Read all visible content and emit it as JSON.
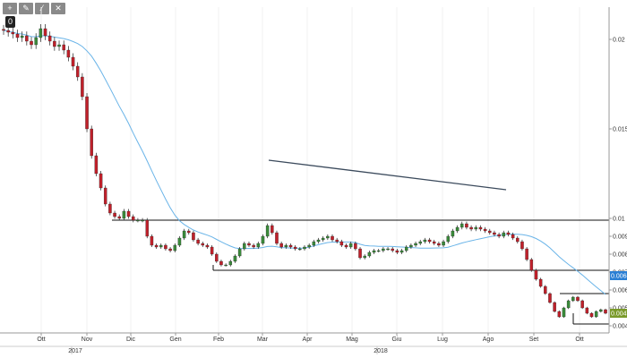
{
  "toolbar": {
    "buttons": [
      {
        "icon": "crosshair-icon",
        "glyph": "+"
      },
      {
        "icon": "pencil-icon",
        "glyph": "✎"
      },
      {
        "icon": "trend-tool-icon",
        "glyph": "⁄"
      },
      {
        "icon": "delete-tool-icon",
        "glyph": "✕"
      }
    ],
    "zero_label": "0"
  },
  "chart_data": {
    "type": "candlestick",
    "y_ticks": [
      "0.02",
      "0.015",
      "0.01",
      "0.009",
      "0.008",
      "0.007",
      "0.006",
      "0.005",
      "0.004"
    ],
    "ylim": [
      0.0036,
      0.0218
    ],
    "x_month_labels": [
      "Ott",
      "Nov",
      "Dic",
      "Gen",
      "Feb",
      "Mar",
      "Apr",
      "Mag",
      "Giu",
      "Lug",
      "Ago",
      "Set",
      "Ott"
    ],
    "x_year_labels": [
      "2017",
      "2018"
    ],
    "price_badges": [
      {
        "label": "0.0068",
        "color": "#2a7fd4"
      },
      {
        "label": "0.0047",
        "color": "#7a9a2a"
      }
    ],
    "horizontal_levels": [
      0.0099,
      0.0071,
      0.0058,
      0.0041
    ],
    "moving_average_color": "#6ab4e8",
    "up_color": "#3a8a3a",
    "down_color": "#c0202a",
    "close": [
      0.0205,
      0.0204,
      0.0203,
      0.0201,
      0.0202,
      0.0199,
      0.0197,
      0.0201,
      0.0206,
      0.0202,
      0.0199,
      0.0196,
      0.0197,
      0.0194,
      0.019,
      0.0185,
      0.0179,
      0.0168,
      0.015,
      0.0135,
      0.0125,
      0.0117,
      0.0108,
      0.0103,
      0.0101,
      0.01,
      0.0104,
      0.0101,
      0.0099,
      0.0099,
      0.0099,
      0.009,
      0.0085,
      0.0084,
      0.0085,
      0.0083,
      0.0082,
      0.0085,
      0.0089,
      0.0093,
      0.0092,
      0.0088,
      0.0086,
      0.0085,
      0.0084,
      0.008,
      0.0076,
      0.0074,
      0.0074,
      0.0076,
      0.0079,
      0.0083,
      0.0086,
      0.0085,
      0.0084,
      0.0086,
      0.009,
      0.0096,
      0.0092,
      0.0086,
      0.0084,
      0.0085,
      0.0084,
      0.0083,
      0.0083,
      0.0084,
      0.0085,
      0.0087,
      0.0088,
      0.0089,
      0.009,
      0.0088,
      0.0087,
      0.0085,
      0.0084,
      0.0086,
      0.0083,
      0.0078,
      0.0079,
      0.0081,
      0.0082,
      0.0082,
      0.0083,
      0.0083,
      0.0082,
      0.0081,
      0.0082,
      0.0084,
      0.0085,
      0.0086,
      0.0087,
      0.0088,
      0.0087,
      0.0086,
      0.0085,
      0.0087,
      0.009,
      0.0093,
      0.0095,
      0.0097,
      0.0095,
      0.0094,
      0.0095,
      0.0094,
      0.0093,
      0.0092,
      0.0091,
      0.009,
      0.0092,
      0.0091,
      0.0089,
      0.0087,
      0.0083,
      0.0077,
      0.0071,
      0.0066,
      0.0062,
      0.0058,
      0.0053,
      0.0048,
      0.0045,
      0.005,
      0.0054,
      0.0056,
      0.0054,
      0.005,
      0.0047,
      0.0045,
      0.0048,
      0.0049,
      0.0047
    ]
  }
}
